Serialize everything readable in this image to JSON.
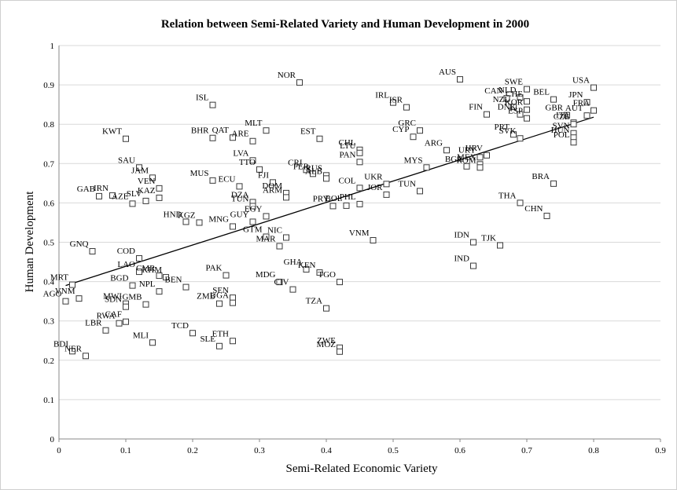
{
  "chart_data": {
    "type": "scatter",
    "title": "Relation between Semi-Related Variety and Human Development in 2000",
    "xlabel": "Semi-Related Economic Variety",
    "ylabel": "Human Development",
    "xlim": [
      0,
      0.9
    ],
    "ylim": [
      0,
      1
    ],
    "x_ticks": [
      "0",
      "0.1",
      "0.2",
      "0.3",
      "0.4",
      "0.5",
      "0.6",
      "0.7",
      "0.8",
      "0.9"
    ],
    "y_ticks": [
      "0",
      "0.1",
      "0.2",
      "0.3",
      "0.4",
      "0.5",
      "0.6",
      "0.7",
      "0.8",
      "0.9",
      "1"
    ],
    "grid": "horizontal",
    "trendline": {
      "x": [
        0.01,
        0.8
      ],
      "y": [
        0.39,
        0.818
      ]
    },
    "points": [
      {
        "label": "NOR",
        "x": 0.36,
        "y": 0.906
      },
      {
        "label": "AUS",
        "x": 0.6,
        "y": 0.914
      },
      {
        "label": "USA",
        "x": 0.8,
        "y": 0.893
      },
      {
        "label": "SWE",
        "x": 0.7,
        "y": 0.889
      },
      {
        "label": "ISL",
        "x": 0.23,
        "y": 0.849
      },
      {
        "label": "IRL",
        "x": 0.5,
        "y": 0.855
      },
      {
        "label": "ISR",
        "x": 0.52,
        "y": 0.843
      },
      {
        "label": "NLD",
        "x": 0.69,
        "y": 0.868
      },
      {
        "label": "CAN",
        "x": 0.67,
        "y": 0.866
      },
      {
        "label": "BEL",
        "x": 0.74,
        "y": 0.863
      },
      {
        "label": "JPN",
        "x": 0.79,
        "y": 0.856
      },
      {
        "label": "FRA",
        "x": 0.8,
        "y": 0.835
      },
      {
        "label": "CHE",
        "x": 0.7,
        "y": 0.858
      },
      {
        "label": "NZL",
        "x": 0.68,
        "y": 0.844
      },
      {
        "label": "GBR",
        "x": 0.76,
        "y": 0.823
      },
      {
        "label": "KOR",
        "x": 0.7,
        "y": 0.837
      },
      {
        "label": "AUT",
        "x": 0.79,
        "y": 0.822
      },
      {
        "label": "DNK",
        "x": 0.69,
        "y": 0.825
      },
      {
        "label": "FIN",
        "x": 0.64,
        "y": 0.825
      },
      {
        "label": "ESP",
        "x": 0.7,
        "y": 0.815
      },
      {
        "label": "ITA",
        "x": 0.77,
        "y": 0.804
      },
      {
        "label": "CZE",
        "x": 0.77,
        "y": 0.8
      },
      {
        "label": "SVN",
        "x": 0.77,
        "y": 0.777
      },
      {
        "label": "HUN",
        "x": 0.77,
        "y": 0.766
      },
      {
        "label": "POL",
        "x": 0.77,
        "y": 0.754
      },
      {
        "label": "PRT",
        "x": 0.68,
        "y": 0.774
      },
      {
        "label": "SVK",
        "x": 0.69,
        "y": 0.764
      },
      {
        "label": "MLT",
        "x": 0.31,
        "y": 0.784
      },
      {
        "label": "KWT",
        "x": 0.1,
        "y": 0.763
      },
      {
        "label": "BHR",
        "x": 0.23,
        "y": 0.765
      },
      {
        "label": "QAT",
        "x": 0.26,
        "y": 0.766
      },
      {
        "label": "ARE",
        "x": 0.29,
        "y": 0.757
      },
      {
        "label": "EST",
        "x": 0.39,
        "y": 0.763
      },
      {
        "label": "GRC",
        "x": 0.54,
        "y": 0.784
      },
      {
        "label": "CYP",
        "x": 0.53,
        "y": 0.768
      },
      {
        "label": "ARG",
        "x": 0.58,
        "y": 0.734
      },
      {
        "label": "CHL",
        "x": 0.45,
        "y": 0.735
      },
      {
        "label": "LTU",
        "x": 0.45,
        "y": 0.727
      },
      {
        "label": "PAN",
        "x": 0.45,
        "y": 0.704
      },
      {
        "label": "HRV",
        "x": 0.64,
        "y": 0.721
      },
      {
        "label": "URY",
        "x": 0.63,
        "y": 0.716
      },
      {
        "label": "MEX",
        "x": 0.63,
        "y": 0.698
      },
      {
        "label": "ROM",
        "x": 0.63,
        "y": 0.69
      },
      {
        "label": "BGR",
        "x": 0.61,
        "y": 0.693
      },
      {
        "label": "MYS",
        "x": 0.55,
        "y": 0.69
      },
      {
        "label": "LVA",
        "x": 0.29,
        "y": 0.708
      },
      {
        "label": "TTO",
        "x": 0.3,
        "y": 0.685
      },
      {
        "label": "FJI",
        "x": 0.32,
        "y": 0.652
      },
      {
        "label": "CRI",
        "x": 0.37,
        "y": 0.684
      },
      {
        "label": "PER",
        "x": 0.38,
        "y": 0.674
      },
      {
        "label": "RUS",
        "x": 0.4,
        "y": 0.67
      },
      {
        "label": "ALB",
        "x": 0.4,
        "y": 0.662
      },
      {
        "label": "COL",
        "x": 0.45,
        "y": 0.638
      },
      {
        "label": "UKR",
        "x": 0.49,
        "y": 0.648
      },
      {
        "label": "TUN",
        "x": 0.54,
        "y": 0.63
      },
      {
        "label": "BRA",
        "x": 0.74,
        "y": 0.649
      },
      {
        "label": "SAU",
        "x": 0.12,
        "y": 0.69
      },
      {
        "label": "JAM",
        "x": 0.14,
        "y": 0.664
      },
      {
        "label": "VEN",
        "x": 0.15,
        "y": 0.637
      },
      {
        "label": "MUS",
        "x": 0.23,
        "y": 0.657
      },
      {
        "label": "ECU",
        "x": 0.27,
        "y": 0.642
      },
      {
        "label": "DOM",
        "x": 0.34,
        "y": 0.625
      },
      {
        "label": "ARM",
        "x": 0.34,
        "y": 0.614
      },
      {
        "label": "DZA",
        "x": 0.29,
        "y": 0.602
      },
      {
        "label": "TUN",
        "x": 0.29,
        "y": 0.592
      },
      {
        "label": "IRN",
        "x": 0.08,
        "y": 0.619
      },
      {
        "label": "GAB",
        "x": 0.06,
        "y": 0.617
      },
      {
        "label": "AZE",
        "x": 0.11,
        "y": 0.598
      },
      {
        "label": "SLV",
        "x": 0.13,
        "y": 0.605
      },
      {
        "label": "KAZ",
        "x": 0.15,
        "y": 0.613
      },
      {
        "label": "PRY",
        "x": 0.41,
        "y": 0.592
      },
      {
        "label": "PHL",
        "x": 0.45,
        "y": 0.597
      },
      {
        "label": "BOL",
        "x": 0.43,
        "y": 0.593
      },
      {
        "label": "JOR",
        "x": 0.49,
        "y": 0.621
      },
      {
        "label": "THA",
        "x": 0.69,
        "y": 0.6
      },
      {
        "label": "CHN",
        "x": 0.73,
        "y": 0.567
      },
      {
        "label": "HND",
        "x": 0.19,
        "y": 0.552
      },
      {
        "label": "KGZ",
        "x": 0.21,
        "y": 0.55
      },
      {
        "label": "EGY",
        "x": 0.31,
        "y": 0.566
      },
      {
        "label": "GUY",
        "x": 0.29,
        "y": 0.552
      },
      {
        "label": "MNG",
        "x": 0.26,
        "y": 0.54
      },
      {
        "label": "GTM",
        "x": 0.31,
        "y": 0.514
      },
      {
        "label": "NIC",
        "x": 0.34,
        "y": 0.512
      },
      {
        "label": "MAR",
        "x": 0.33,
        "y": 0.49
      },
      {
        "label": "VNM",
        "x": 0.47,
        "y": 0.505
      },
      {
        "label": "IDN",
        "x": 0.62,
        "y": 0.5
      },
      {
        "label": "TJK",
        "x": 0.66,
        "y": 0.492
      },
      {
        "label": "IND",
        "x": 0.62,
        "y": 0.44
      },
      {
        "label": "GNQ",
        "x": 0.05,
        "y": 0.477
      },
      {
        "label": "COD",
        "x": 0.12,
        "y": 0.459
      },
      {
        "label": "LAO",
        "x": 0.12,
        "y": 0.425
      },
      {
        "label": "CMR",
        "x": 0.15,
        "y": 0.415
      },
      {
        "label": "KHM",
        "x": 0.16,
        "y": 0.411
      },
      {
        "label": "BGD",
        "x": 0.11,
        "y": 0.39
      },
      {
        "label": "NPL",
        "x": 0.15,
        "y": 0.375
      },
      {
        "label": "BEN",
        "x": 0.19,
        "y": 0.386
      },
      {
        "label": "PAK",
        "x": 0.25,
        "y": 0.416
      },
      {
        "label": "GHA",
        "x": 0.37,
        "y": 0.431
      },
      {
        "label": "KEN",
        "x": 0.39,
        "y": 0.423
      },
      {
        "label": "MDG",
        "x": 0.33,
        "y": 0.399
      },
      {
        "label": "CIV",
        "x": 0.35,
        "y": 0.38
      },
      {
        "label": "TGO",
        "x": 0.42,
        "y": 0.399
      },
      {
        "label": "MRT",
        "x": 0.02,
        "y": 0.392
      },
      {
        "label": "AGO",
        "x": 0.01,
        "y": 0.35
      },
      {
        "label": "VNM",
        "x": 0.03,
        "y": 0.357
      },
      {
        "label": "MWI",
        "x": 0.1,
        "y": 0.344
      },
      {
        "label": "GMB",
        "x": 0.13,
        "y": 0.342
      },
      {
        "label": "SDN",
        "x": 0.1,
        "y": 0.336
      },
      {
        "label": "SEN",
        "x": 0.26,
        "y": 0.359
      },
      {
        "label": "ZMB",
        "x": 0.24,
        "y": 0.344
      },
      {
        "label": "UGA",
        "x": 0.26,
        "y": 0.346
      },
      {
        "label": "TZA",
        "x": 0.4,
        "y": 0.332
      },
      {
        "label": "RWA",
        "x": 0.09,
        "y": 0.294
      },
      {
        "label": "CAF",
        "x": 0.1,
        "y": 0.298
      },
      {
        "label": "LBR",
        "x": 0.07,
        "y": 0.276
      },
      {
        "label": "TCD",
        "x": 0.2,
        "y": 0.269
      },
      {
        "label": "MLI",
        "x": 0.14,
        "y": 0.245
      },
      {
        "label": "ETH",
        "x": 0.26,
        "y": 0.249
      },
      {
        "label": "SLE",
        "x": 0.24,
        "y": 0.236
      },
      {
        "label": "ZWE",
        "x": 0.42,
        "y": 0.232
      },
      {
        "label": "MOZ",
        "x": 0.42,
        "y": 0.222
      },
      {
        "label": "BDI",
        "x": 0.02,
        "y": 0.223
      },
      {
        "label": "NER",
        "x": 0.04,
        "y": 0.211
      }
    ]
  }
}
